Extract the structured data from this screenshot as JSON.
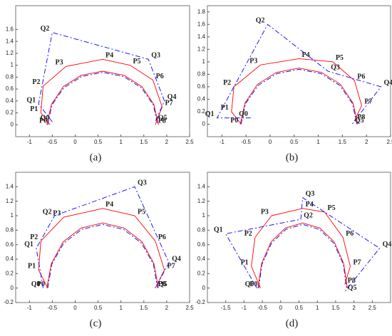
{
  "chart_data": [
    {
      "type": "line",
      "caption": "(a)",
      "xlim": [
        -1.3,
        2.5
      ],
      "xticks": [
        -1,
        -0.5,
        0,
        0.5,
        1,
        1.5,
        2,
        2.5
      ],
      "ylim": [
        -0.2,
        2
      ],
      "yticks": [
        0,
        0.2,
        0.4,
        0.6,
        0.8,
        1,
        1.2,
        1.4,
        1.6
      ],
      "series": [
        {
          "color": "#0000ff",
          "dash": "dashdot",
          "x": [
            -0.6,
            -0.51,
            -0.25,
            0.14,
            0.6,
            1.06,
            1.45,
            1.71,
            1.8
          ],
          "values": [
            0,
            0.33,
            0.62,
            0.81,
            0.88,
            0.81,
            0.62,
            0.33,
            0
          ]
        },
        {
          "color": "#ff0000",
          "dash": "solid",
          "x": [
            -0.62,
            -0.52,
            -0.26,
            0.13,
            0.6,
            1.07,
            1.46,
            1.72,
            1.82
          ],
          "values": [
            0,
            0.34,
            0.64,
            0.83,
            0.9,
            0.83,
            0.64,
            0.34,
            0
          ]
        },
        {
          "color": "#ff0000",
          "dash": "solid",
          "point_labels": [
            "P0",
            "P1",
            "P2",
            "P3",
            "P4",
            "P5",
            "P6",
            "P7",
            "P8"
          ],
          "x": [
            -0.55,
            -0.75,
            -0.7,
            -0.2,
            0.6,
            1.2,
            1.7,
            1.9,
            1.75
          ],
          "values": [
            0,
            0.2,
            0.65,
            0.98,
            1.1,
            1.0,
            0.75,
            0.3,
            0
          ]
        },
        {
          "color": "#0000ff",
          "dash": "dashdot",
          "point_labels": [
            "Q0",
            "Q1",
            "Q2",
            "Q3",
            "Q4",
            "Q5"
          ],
          "x": [
            -0.5,
            -0.8,
            -0.5,
            1.6,
            1.95,
            1.75
          ],
          "values": [
            0.05,
            0.35,
            1.55,
            1.1,
            0.4,
            0.05
          ]
        }
      ]
    },
    {
      "type": "line",
      "caption": "(b)",
      "xlim": [
        -1.3,
        2.5
      ],
      "xticks": [
        -1,
        -0.5,
        0,
        0.5,
        1,
        1.5,
        2,
        2.5
      ],
      "ylim": [
        -0.2,
        1.9
      ],
      "yticks": [
        0,
        0.2,
        0.4,
        0.6,
        0.8,
        1,
        1.2,
        1.4,
        1.6,
        1.8
      ],
      "series": [
        {
          "color": "#0000ff",
          "dash": "dashdot",
          "x": [
            -0.6,
            -0.51,
            -0.25,
            0.14,
            0.6,
            1.06,
            1.45,
            1.71,
            1.8
          ],
          "values": [
            0,
            0.33,
            0.62,
            0.81,
            0.88,
            0.81,
            0.62,
            0.33,
            0
          ]
        },
        {
          "color": "#ff0000",
          "dash": "solid",
          "x": [
            -0.62,
            -0.52,
            -0.26,
            0.13,
            0.6,
            1.07,
            1.46,
            1.72,
            1.82
          ],
          "values": [
            0,
            0.34,
            0.64,
            0.83,
            0.9,
            0.83,
            0.64,
            0.34,
            0
          ]
        },
        {
          "color": "#ff0000",
          "dash": "solid",
          "point_labels": [
            "P0",
            "P1",
            "P2",
            "P3",
            "P4",
            "P5",
            "P6",
            "P7",
            "P8"
          ],
          "x": [
            -0.6,
            -0.8,
            -0.75,
            -0.2,
            0.6,
            1.3,
            1.75,
            1.9,
            1.75
          ],
          "values": [
            0,
            0.2,
            0.6,
            0.95,
            1.05,
            1.0,
            0.7,
            0.3,
            0.05
          ]
        },
        {
          "color": "#0000ff",
          "dash": "dashdot",
          "point_labels": [
            "Q0",
            "Q1",
            "Q2",
            "Q3",
            "Q4",
            "Q5"
          ],
          "x": [
            -0.4,
            -1.1,
            -0.05,
            1.2,
            2.3,
            1.7
          ],
          "values": [
            0.1,
            0.1,
            1.6,
            0.85,
            0.6,
            0
          ]
        }
      ]
    },
    {
      "type": "line",
      "caption": "(c)",
      "xlim": [
        -1.3,
        2.5
      ],
      "xticks": [
        -1,
        -0.5,
        0,
        0.5,
        1,
        1.5,
        2,
        2.5
      ],
      "ylim": [
        -0.2,
        1.6
      ],
      "yticks": [
        -0.2,
        0,
        0.2,
        0.4,
        0.6,
        0.8,
        1,
        1.2,
        1.4
      ],
      "series": [
        {
          "color": "#0000ff",
          "dash": "dashdot",
          "x": [
            -0.6,
            -0.51,
            -0.25,
            0.14,
            0.6,
            1.06,
            1.45,
            1.71,
            1.8
          ],
          "values": [
            0,
            0.33,
            0.62,
            0.81,
            0.88,
            0.81,
            0.62,
            0.33,
            0
          ]
        },
        {
          "color": "#ff0000",
          "dash": "solid",
          "x": [
            -0.62,
            -0.52,
            -0.26,
            0.13,
            0.6,
            1.07,
            1.46,
            1.72,
            1.82
          ],
          "values": [
            0,
            0.34,
            0.64,
            0.83,
            0.9,
            0.83,
            0.64,
            0.34,
            0
          ]
        },
        {
          "color": "#ff0000",
          "dash": "solid",
          "point_labels": [
            "P0",
            "P1",
            "P2",
            "P3",
            "P4",
            "P5",
            "P6",
            "P7",
            "P8"
          ],
          "x": [
            -0.6,
            -0.8,
            -0.75,
            -0.25,
            0.6,
            1.3,
            1.75,
            1.95,
            1.75
          ],
          "values": [
            0,
            0.25,
            0.65,
            0.98,
            1.1,
            1.0,
            0.65,
            0.25,
            0
          ]
        },
        {
          "color": "#0000ff",
          "dash": "dashdot",
          "point_labels": [
            "Q0",
            "Q1",
            "Q2",
            "Q3",
            "Q4",
            "Q5"
          ],
          "x": [
            -0.7,
            -0.85,
            -0.45,
            1.3,
            2.05,
            1.75
          ],
          "values": [
            0,
            0.55,
            1.0,
            1.4,
            0.35,
            0
          ]
        }
      ]
    },
    {
      "type": "line",
      "caption": "(d)",
      "xlim": [
        -2,
        3
      ],
      "xticks": [
        -1.5,
        -1,
        -0.5,
        0,
        0.5,
        1,
        1.5,
        2,
        2.5
      ],
      "ylim": [
        -0.2,
        1.6
      ],
      "yticks": [
        -0.2,
        0,
        0.2,
        0.4,
        0.6,
        0.8,
        1,
        1.2,
        1.4
      ],
      "series": [
        {
          "color": "#0000ff",
          "dash": "dashdot",
          "x": [
            -0.6,
            -0.51,
            -0.25,
            0.14,
            0.6,
            1.06,
            1.45,
            1.71,
            1.8
          ],
          "values": [
            0,
            0.33,
            0.62,
            0.81,
            0.88,
            0.81,
            0.62,
            0.33,
            0
          ]
        },
        {
          "color": "#ff0000",
          "dash": "solid",
          "x": [
            -0.62,
            -0.52,
            -0.26,
            0.13,
            0.6,
            1.07,
            1.46,
            1.72,
            1.82
          ],
          "values": [
            0,
            0.34,
            0.64,
            0.83,
            0.9,
            0.83,
            0.64,
            0.34,
            0
          ]
        },
        {
          "color": "#ff0000",
          "dash": "solid",
          "point_labels": [
            "P0",
            "P1",
            "P2",
            "P3",
            "P4",
            "P5",
            "P6",
            "P7",
            "P8"
          ],
          "x": [
            -0.55,
            -0.8,
            -0.7,
            -0.25,
            0.6,
            1.2,
            1.7,
            1.9,
            1.75
          ],
          "values": [
            0,
            0.3,
            0.7,
            1.0,
            1.1,
            1.05,
            0.7,
            0.3,
            0.05
          ]
        },
        {
          "color": "#0000ff",
          "dash": "dashdot",
          "point_labels": [
            "Q0",
            "Q1",
            "Q2",
            "Q3",
            "Q4",
            "Q5"
          ],
          "x": [
            -0.65,
            -1.5,
            0.55,
            0.6,
            2.7,
            1.75
          ],
          "values": [
            0,
            0.75,
            0.95,
            1.25,
            0.55,
            -0.05
          ]
        }
      ]
    }
  ]
}
